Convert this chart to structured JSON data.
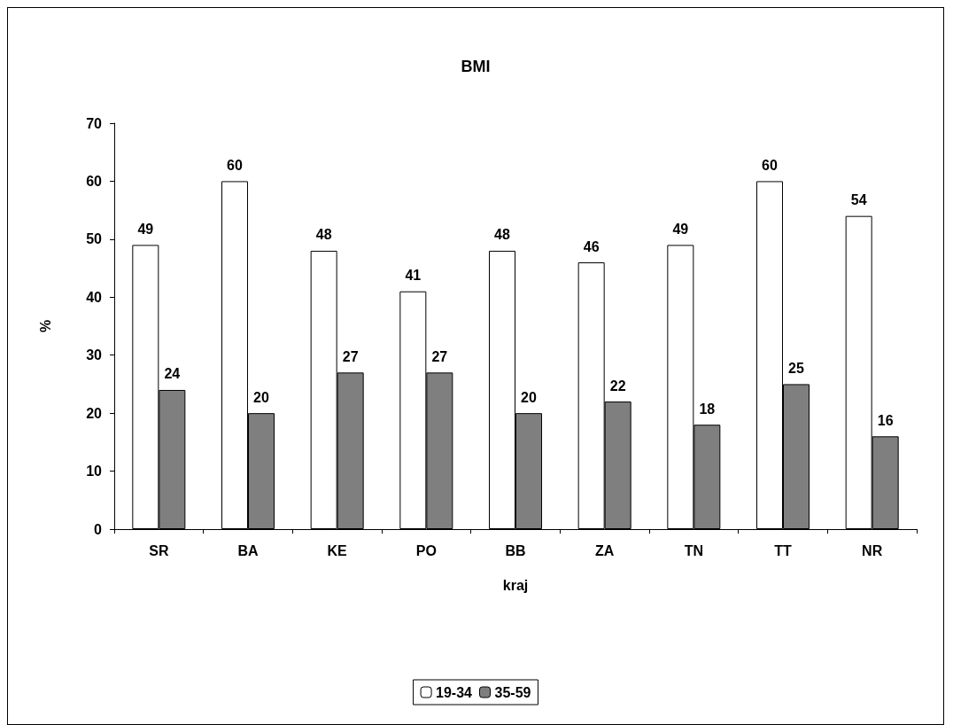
{
  "chart_data": {
    "type": "bar",
    "title": "BMI",
    "xlabel": "kraj",
    "ylabel": "%",
    "categories": [
      "SR",
      "BA",
      "KE",
      "PO",
      "BB",
      "ZA",
      "TN",
      "TT",
      "NR"
    ],
    "series": [
      {
        "name": "19-34",
        "color": "#ffffff",
        "values": [
          49,
          60,
          48,
          41,
          48,
          46,
          49,
          60,
          54
        ]
      },
      {
        "name": "35-59",
        "color": "#7f7f7f",
        "values": [
          24,
          20,
          27,
          27,
          20,
          22,
          18,
          25,
          16
        ]
      }
    ],
    "ylim": [
      0,
      70
    ],
    "yticks": [
      0,
      10,
      20,
      30,
      40,
      50,
      60,
      70
    ],
    "grid": false,
    "legend": "bottom",
    "data_labels": true
  }
}
